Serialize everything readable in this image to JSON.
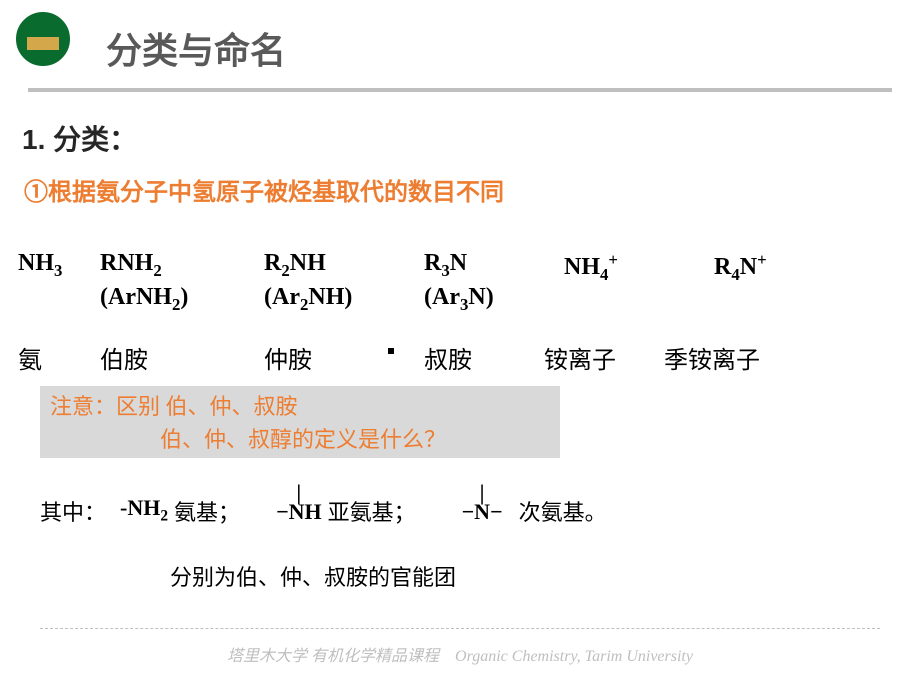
{
  "header": {
    "title": "分类与命名"
  },
  "section": {
    "number_label": "1. 分类：",
    "subtitle": "①根据氨分子中氢原子被烃基取代的数目不同"
  },
  "table": {
    "row1": {
      "c1": "NH<sub>3</sub>",
      "c2": "RNH<sub>2</sub>",
      "c3": "R<sub>2</sub>NH",
      "c4": "R<sub>3</sub>N",
      "c5": "NH<sub>4</sub><sup>+</sup>",
      "c6": "R<sub>4</sub>N<sup>+</sup>"
    },
    "row2": {
      "c2": "(ArNH<sub>2</sub>)",
      "c3": "(Ar<sub>2</sub>NH)",
      "c4": "(Ar<sub>3</sub>N)"
    },
    "names": {
      "c1": "氨",
      "c2": "伯胺",
      "c3": "仲胺",
      "c4": "叔胺",
      "c5": "铵离子",
      "c6": "季铵离子"
    }
  },
  "note": {
    "line1": "注意：区别 伯、仲、叔胺",
    "line2_indent": "　　　　　伯、仲、叔醇的定义是什么？"
  },
  "functional": {
    "prefix": "其中：",
    "g1_formula": "-NH<sub>2</sub>",
    "g1_name": "氨基；",
    "g2_top": "|",
    "g2_main": "−NH",
    "g2_name": "亚氨基；",
    "g3_top": "|",
    "g3_main": "−N−",
    "g3_name": "次氨基。"
  },
  "summary": "分别为伯、仲、叔胺的官能团",
  "footer": "塔里木大学 有机化学精品课程　Organic Chemistry, Tarim University",
  "colors": {
    "title_color": "#595959",
    "accent": "#ed7d31",
    "note_bg": "#d9d9d9",
    "hr_color": "#bfbfbf",
    "logo_green": "#0a6b2e"
  }
}
